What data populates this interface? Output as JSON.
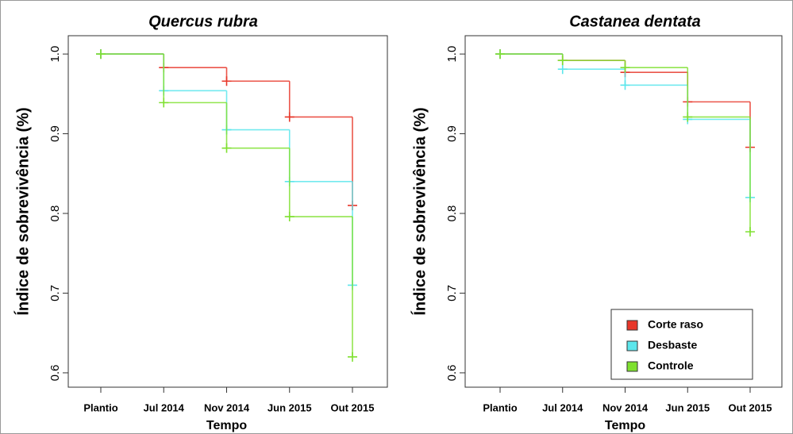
{
  "chart_data": [
    {
      "type": "step",
      "title": "Quercus rubra",
      "xlabel": "Tempo",
      "ylabel": "Índice de sobrevivência (%)",
      "categories": [
        "Plantio",
        "Jul 2014",
        "Nov 2014",
        "Jun 2015",
        "Out  2015"
      ],
      "ylim": [
        0.582,
        1.023
      ],
      "yticks": [
        0.6,
        0.7,
        0.8,
        0.9,
        {
          "value": 1,
          "label": "1.0"
        }
      ],
      "series": [
        {
          "color": "#e8372a",
          "values": [
            1,
            0.983,
            0.966,
            0.921,
            0.81
          ]
        },
        {
          "color": "#5ce6ec",
          "values": [
            1,
            0.954,
            0.905,
            0.84,
            0.71
          ]
        },
        {
          "color": "#7fe030",
          "values": [
            1,
            0.939,
            0.882,
            0.796,
            0.62
          ]
        }
      ]
    },
    {
      "type": "step",
      "title": "Castanea dentata",
      "xlabel": "Tempo",
      "ylabel": "Índice de sobrevivência (%)",
      "categories": [
        "Plantio",
        "Jul 2014",
        "Nov 2014",
        "Jun 2015",
        "Out  2015"
      ],
      "ylim": [
        0.582,
        1.023
      ],
      "yticks": [
        0.6,
        0.7,
        0.8,
        0.9,
        {
          "value": 1,
          "label": "1.0"
        }
      ],
      "legend": "lower right",
      "series": [
        {
          "name": "Corte raso",
          "color": "#e8372a",
          "values": [
            1,
            0.992,
            0.977,
            0.94,
            0.883
          ]
        },
        {
          "name": "Desbaste",
          "color": "#5ce6ec",
          "values": [
            1,
            0.981,
            0.961,
            0.918,
            0.82
          ]
        },
        {
          "name": "Controle",
          "color": "#7fe030",
          "values": [
            1,
            0.992,
            0.983,
            0.921,
            0.777
          ]
        }
      ]
    }
  ]
}
